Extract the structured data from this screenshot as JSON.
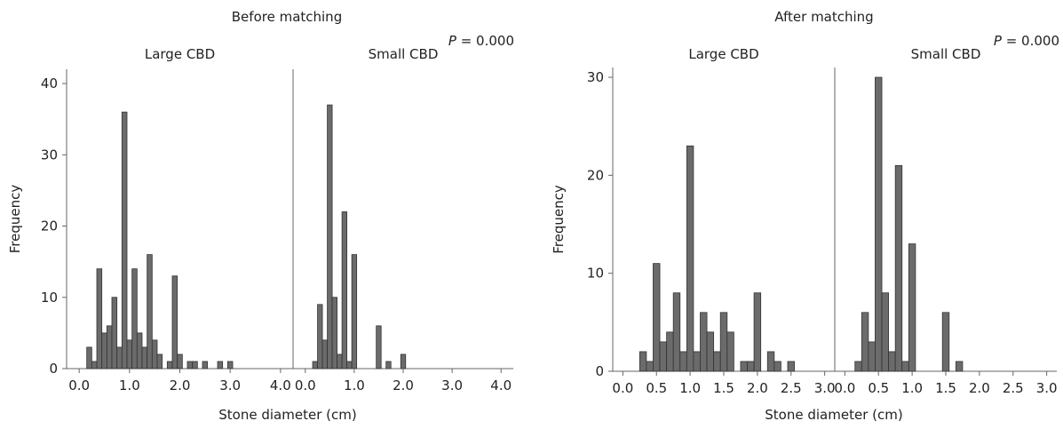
{
  "chart_data": [
    {
      "type": "bar",
      "title": "Before matching",
      "annotation": {
        "italic": "P",
        "text": " = 0.000"
      },
      "xlabel": "Stone diameter (cm)",
      "ylabel": "Frequency",
      "ylim": [
        0,
        42
      ],
      "yticks": [
        0,
        10,
        20,
        30,
        40
      ],
      "xlim": [
        -0.25,
        4.25
      ],
      "xticks": [
        "0.0",
        "1.0",
        "2.0",
        "3.0",
        "4.0"
      ],
      "xtick_values": [
        0,
        1,
        2,
        3,
        4
      ],
      "bar_width": 0.1,
      "bar_color": "#6b6b6b",
      "panels": [
        {
          "name": "Large CBD",
          "x": [
            0.2,
            0.3,
            0.4,
            0.5,
            0.6,
            0.7,
            0.8,
            0.9,
            1.0,
            1.1,
            1.2,
            1.3,
            1.4,
            1.5,
            1.6,
            1.8,
            1.9,
            2.0,
            2.2,
            2.3,
            2.5,
            2.8,
            3.0
          ],
          "values": [
            3,
            1,
            14,
            5,
            6,
            10,
            3,
            36,
            4,
            14,
            5,
            3,
            16,
            4,
            2,
            1,
            13,
            2,
            1,
            1,
            1,
            1,
            1
          ]
        },
        {
          "name": "Small CBD",
          "x": [
            0.2,
            0.3,
            0.4,
            0.5,
            0.6,
            0.7,
            0.8,
            0.9,
            1.0,
            1.5,
            1.7,
            2.0
          ],
          "values": [
            1,
            9,
            4,
            37,
            10,
            2,
            22,
            1,
            16,
            6,
            1,
            2
          ]
        }
      ]
    },
    {
      "type": "bar",
      "title": "After matching",
      "annotation": {
        "italic": "P",
        "text": " = 0.000"
      },
      "xlabel": "Stone diameter (cm)",
      "ylabel": "Frequency",
      "ylim": [
        0,
        31
      ],
      "yticks": [
        0,
        10,
        20,
        30
      ],
      "xlim": [
        -0.15,
        3.15
      ],
      "xticks": [
        "0.0",
        "0.5",
        "1.0",
        "1.5",
        "2.0",
        "2.5",
        "3.0"
      ],
      "xtick_values": [
        0,
        0.5,
        1,
        1.5,
        2,
        2.5,
        3
      ],
      "bar_width": 0.1,
      "bar_color": "#6b6b6b",
      "panels": [
        {
          "name": "Large CBD",
          "x": [
            0.3,
            0.4,
            0.5,
            0.6,
            0.7,
            0.8,
            0.9,
            1.0,
            1.1,
            1.2,
            1.3,
            1.4,
            1.5,
            1.6,
            1.8,
            1.9,
            2.0,
            2.2,
            2.3,
            2.5
          ],
          "values": [
            2,
            1,
            11,
            3,
            4,
            8,
            2,
            23,
            2,
            6,
            4,
            2,
            6,
            4,
            1,
            1,
            8,
            2,
            1,
            1
          ]
        },
        {
          "name": "Small CBD",
          "x": [
            0.2,
            0.3,
            0.4,
            0.5,
            0.6,
            0.7,
            0.8,
            0.9,
            1.0,
            1.5,
            1.7
          ],
          "values": [
            1,
            6,
            3,
            30,
            8,
            2,
            21,
            1,
            13,
            6,
            1
          ]
        }
      ]
    }
  ]
}
